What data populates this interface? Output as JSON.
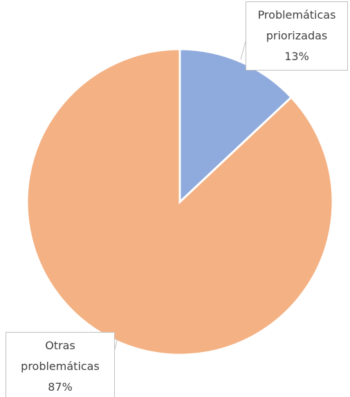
{
  "chart_data": {
    "type": "pie",
    "categories": [
      "Problemáticas priorizadas",
      "Otras problemáticas"
    ],
    "values": [
      13,
      87
    ],
    "value_labels": [
      "13%",
      "87%"
    ],
    "colors": [
      "#8faadc",
      "#f4b183"
    ]
  }
}
